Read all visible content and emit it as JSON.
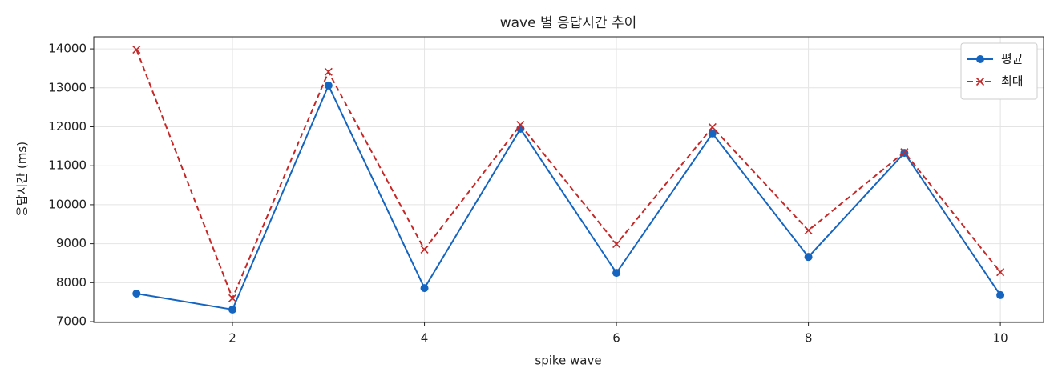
{
  "chart_data": {
    "type": "line",
    "title": "wave 별 응답시간 추이",
    "xlabel": "spike wave",
    "ylabel": "응답시간 (ms)",
    "x": [
      1,
      2,
      3,
      4,
      5,
      6,
      7,
      8,
      9,
      10
    ],
    "series": [
      {
        "name": "평균",
        "color": "#1565c0",
        "marker": "o",
        "linestyle": "solid",
        "values": [
          7720,
          7310,
          13060,
          7860,
          11950,
          8250,
          11830,
          8660,
          11330,
          7680
        ]
      },
      {
        "name": "최대",
        "color": "#c62828",
        "marker": "x",
        "linestyle": "dashed",
        "values": [
          13980,
          7600,
          13410,
          8850,
          12050,
          8990,
          11990,
          9340,
          11350,
          8270
        ]
      }
    ],
    "xlim": [
      0.555,
      10.45
    ],
    "ylim": [
      6980,
      14310
    ],
    "xticks": [
      2,
      4,
      6,
      8,
      10
    ],
    "yticks": [
      7000,
      8000,
      9000,
      10000,
      11000,
      12000,
      13000,
      14000
    ],
    "grid": true,
    "legend": "upper right"
  }
}
